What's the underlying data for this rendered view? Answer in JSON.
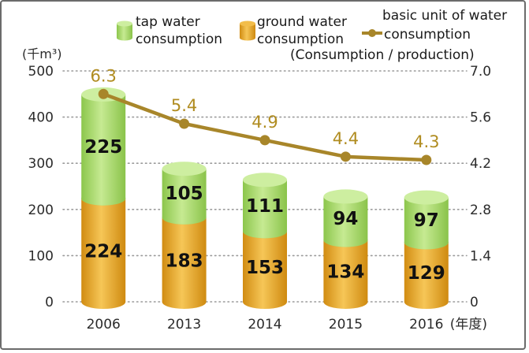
{
  "chart_data": {
    "type": "bar",
    "stacked": true,
    "categories": [
      "2006",
      "2013",
      "2014",
      "2015",
      "2016"
    ],
    "category_suffix": "(年度)",
    "series": [
      {
        "name": "ground water consumption",
        "values": [
          224,
          183,
          153,
          134,
          129
        ],
        "color": "#e9a92e",
        "kind": "bar",
        "axis": "left"
      },
      {
        "name": "tap water consumption",
        "values": [
          225,
          105,
          111,
          94,
          97
        ],
        "color": "#a7da6a",
        "kind": "bar",
        "axis": "left"
      },
      {
        "name": "basic unit of water consumption",
        "values": [
          6.3,
          5.4,
          4.9,
          4.4,
          4.3
        ],
        "color": "#a8862a",
        "kind": "line",
        "axis": "right"
      }
    ],
    "legend": {
      "tap": [
        "tap water",
        "consumption"
      ],
      "ground": [
        "ground water",
        "consumption"
      ],
      "unit": [
        "basic unit of water",
        "consumption",
        "(Consumption / production)"
      ],
      "placement": "top"
    },
    "y_left": {
      "unit_label": "(千m³)",
      "ticks": [
        "0",
        "100",
        "200",
        "300",
        "400",
        "500"
      ],
      "lim": [
        0,
        500
      ]
    },
    "y_right": {
      "ticks": [
        "0",
        "1.4",
        "2.8",
        "4.2",
        "5.6",
        "7.0"
      ],
      "lim": [
        0,
        7.0
      ]
    },
    "grid": "dotted horizontal"
  }
}
